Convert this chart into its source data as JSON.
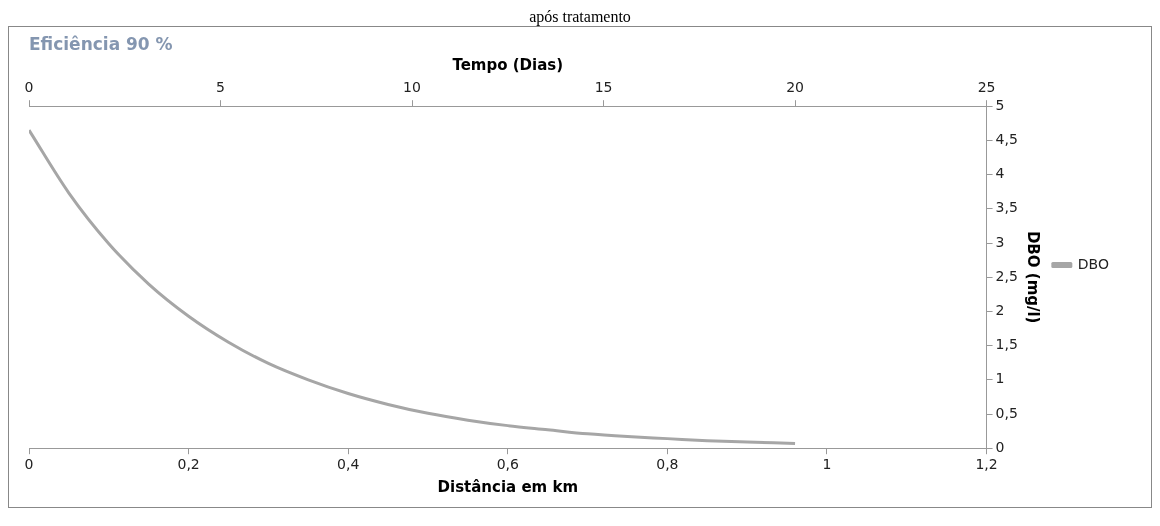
{
  "chart_data": {
    "type": "line",
    "title": "Eficiência 90 %",
    "annotations": [
      "após tratamento"
    ],
    "xlabel": "Distância em km",
    "x2label": "Tempo (Dias)",
    "ylabel": "DBO (mg/l)",
    "x": [
      0,
      0.05,
      0.1,
      0.15,
      0.2,
      0.25,
      0.3,
      0.35,
      0.4,
      0.45,
      0.5,
      0.55,
      0.6,
      0.65,
      0.7,
      0.75,
      0.8,
      0.85,
      0.9,
      0.96
    ],
    "series": [
      {
        "name": "DBO",
        "color": "#a6a6a6",
        "values": [
          4.65,
          3.73,
          2.99,
          2.4,
          1.93,
          1.55,
          1.24,
          1.0,
          0.8,
          0.64,
          0.51,
          0.41,
          0.33,
          0.27,
          0.21,
          0.17,
          0.14,
          0.11,
          0.09,
          0.07
        ]
      }
    ],
    "xlim": [
      0,
      1.2
    ],
    "xticks": [
      0,
      {
        "value": 0.2,
        "label": "0,2"
      },
      {
        "value": 0.4,
        "label": "0,4"
      },
      {
        "value": 0.6,
        "label": "0,6"
      },
      {
        "value": 0.8,
        "label": "0,8"
      },
      1,
      {
        "value": 1.2,
        "label": "1,2"
      }
    ],
    "x2lim": [
      0,
      25
    ],
    "x2ticks": [
      0,
      5,
      10,
      15,
      20,
      25
    ],
    "ylim": [
      0,
      5
    ],
    "yticks": [
      0,
      {
        "value": 0.5,
        "label": "0,5"
      },
      1,
      {
        "value": 1.5,
        "label": "1,5"
      },
      2,
      {
        "value": 2.5,
        "label": "2,5"
      },
      3,
      {
        "value": 3.5,
        "label": "3,5"
      },
      4,
      {
        "value": 4.5,
        "label": "4,5"
      },
      5
    ],
    "grid": false,
    "legend": "right",
    "marker": "none",
    "line_style": "solid"
  }
}
